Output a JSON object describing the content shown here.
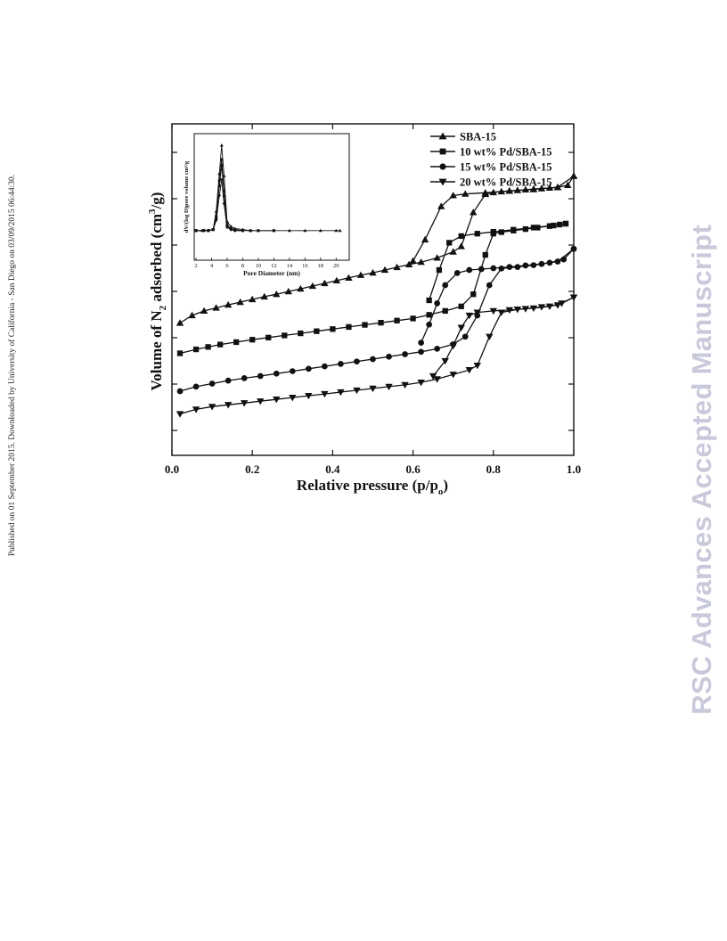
{
  "side_note": "Published on 01 September 2015. Downloaded by University of California - San Diego on 03/09/2015 06:44:30.",
  "watermark": "RSC Advances Accepted Manuscript",
  "colors": {
    "ink": "#111111",
    "watermark": "#c9c9dc"
  },
  "chart_data": [
    {
      "type": "line",
      "title": "",
      "xlabel": "Relative pressure (p/p",
      "xlabel_sub": "o",
      "xlabel_suffix": ")",
      "ylabel_prefix": "Volume of N",
      "ylabel_sub": "2",
      "ylabel_mid": " adsorbed (cm",
      "ylabel_sup": "3",
      "ylabel_suffix": "/g)",
      "xlim": [
        0,
        1
      ],
      "xticks": [
        "0.0",
        "0.2",
        "0.4",
        "0.6",
        "0.8",
        "1.0"
      ],
      "ylim": [
        0,
        100
      ],
      "legend_position": "top-right",
      "series": [
        {
          "name": "SBA-15",
          "marker": "triangle-up",
          "adsorption": [
            [
              0.02,
              37.5
            ],
            [
              0.05,
              40
            ],
            [
              0.08,
              41.5
            ],
            [
              0.11,
              42.5
            ],
            [
              0.14,
              43.5
            ],
            [
              0.17,
              44.4
            ],
            [
              0.2,
              45.3
            ],
            [
              0.23,
              46.2
            ],
            [
              0.26,
              47
            ],
            [
              0.29,
              47.9
            ],
            [
              0.32,
              48.8
            ],
            [
              0.35,
              49.7
            ],
            [
              0.38,
              50.6
            ],
            [
              0.41,
              51.5
            ],
            [
              0.44,
              52.4
            ],
            [
              0.47,
              53.3
            ],
            [
              0.5,
              54.1
            ],
            [
              0.53,
              55
            ],
            [
              0.56,
              55.9
            ],
            [
              0.59,
              56.8
            ],
            [
              0.62,
              57.6
            ],
            [
              0.66,
              59
            ],
            [
              0.7,
              61
            ],
            [
              0.72,
              62.8
            ],
            [
              0.75,
              74
            ],
            [
              0.78,
              80
            ],
            [
              0.8,
              80.6
            ],
            [
              0.82,
              80.9
            ],
            [
              0.84,
              81.1
            ],
            [
              0.86,
              81.3
            ],
            [
              0.88,
              81.5
            ],
            [
              0.9,
              81.7
            ],
            [
              0.92,
              81.9
            ],
            [
              0.94,
              82.1
            ],
            [
              0.96,
              82.3
            ],
            [
              0.985,
              83
            ],
            [
              1.0,
              86
            ]
          ],
          "desorption": [
            [
              1.0,
              86
            ],
            [
              0.96,
              82.3
            ],
            [
              0.9,
              81.6
            ],
            [
              0.84,
              81.1
            ],
            [
              0.78,
              80.5
            ],
            [
              0.73,
              80.1
            ],
            [
              0.7,
              79.6
            ],
            [
              0.67,
              76
            ],
            [
              0.63,
              65
            ],
            [
              0.6,
              58
            ]
          ]
        },
        {
          "name": "10 wt% Pd/SBA-15",
          "marker": "square",
          "adsorption": [
            [
              0.02,
              27.5
            ],
            [
              0.06,
              28.8
            ],
            [
              0.09,
              29.6
            ],
            [
              0.12,
              30.4
            ],
            [
              0.16,
              31.2
            ],
            [
              0.2,
              32
            ],
            [
              0.24,
              32.7
            ],
            [
              0.28,
              33.4
            ],
            [
              0.32,
              34.1
            ],
            [
              0.36,
              34.8
            ],
            [
              0.4,
              35.5
            ],
            [
              0.44,
              36.2
            ],
            [
              0.48,
              36.9
            ],
            [
              0.52,
              37.6
            ],
            [
              0.56,
              38.3
            ],
            [
              0.6,
              39
            ],
            [
              0.64,
              40.2
            ],
            [
              0.68,
              41.5
            ],
            [
              0.72,
              43
            ],
            [
              0.75,
              47
            ],
            [
              0.78,
              60
            ],
            [
              0.8,
              67
            ],
            [
              0.82,
              67.5
            ],
            [
              0.85,
              68
            ],
            [
              0.88,
              68.5
            ],
            [
              0.91,
              69
            ],
            [
              0.94,
              69.5
            ],
            [
              0.965,
              70
            ],
            [
              0.98,
              70.3
            ]
          ],
          "desorption": [
            [
              0.98,
              70.3
            ],
            [
              0.95,
              69.7
            ],
            [
              0.9,
              69
            ],
            [
              0.85,
              68.3
            ],
            [
              0.8,
              67.6
            ],
            [
              0.76,
              67
            ],
            [
              0.72,
              66.2
            ],
            [
              0.69,
              64
            ],
            [
              0.665,
              55
            ],
            [
              0.64,
              45
            ]
          ]
        },
        {
          "name": "15 wt% Pd/SBA-15",
          "marker": "circle",
          "adsorption": [
            [
              0.02,
              15
            ],
            [
              0.06,
              16.5
            ],
            [
              0.1,
              17.5
            ],
            [
              0.14,
              18.5
            ],
            [
              0.18,
              19.3
            ],
            [
              0.22,
              20
            ],
            [
              0.26,
              20.8
            ],
            [
              0.3,
              21.6
            ],
            [
              0.34,
              22.4
            ],
            [
              0.38,
              23.2
            ],
            [
              0.42,
              24
            ],
            [
              0.46,
              24.8
            ],
            [
              0.5,
              25.6
            ],
            [
              0.54,
              26.4
            ],
            [
              0.58,
              27.2
            ],
            [
              0.62,
              28
            ],
            [
              0.66,
              29
            ],
            [
              0.7,
              30.5
            ],
            [
              0.73,
              33
            ],
            [
              0.76,
              40
            ],
            [
              0.79,
              50
            ],
            [
              0.82,
              55.5
            ],
            [
              0.86,
              56
            ],
            [
              0.9,
              56.6
            ],
            [
              0.94,
              57.4
            ],
            [
              0.975,
              58.5
            ],
            [
              1.0,
              62
            ]
          ],
          "desorption": [
            [
              1.0,
              62
            ],
            [
              0.96,
              57.8
            ],
            [
              0.92,
              57
            ],
            [
              0.88,
              56.5
            ],
            [
              0.84,
              56
            ],
            [
              0.8,
              55.6
            ],
            [
              0.77,
              55.3
            ],
            [
              0.74,
              55
            ],
            [
              0.71,
              54
            ],
            [
              0.68,
              50
            ],
            [
              0.66,
              44
            ],
            [
              0.64,
              37
            ],
            [
              0.62,
              31
            ]
          ]
        },
        {
          "name": "20 wt% Pd/SBA-15",
          "marker": "triangle-down",
          "adsorption": [
            [
              0.02,
              7.5
            ],
            [
              0.06,
              9
            ],
            [
              0.1,
              9.9
            ],
            [
              0.14,
              10.5
            ],
            [
              0.18,
              11.1
            ],
            [
              0.22,
              11.7
            ],
            [
              0.26,
              12.3
            ],
            [
              0.3,
              12.9
            ],
            [
              0.34,
              13.5
            ],
            [
              0.38,
              14.1
            ],
            [
              0.42,
              14.7
            ],
            [
              0.46,
              15.3
            ],
            [
              0.5,
              15.9
            ],
            [
              0.54,
              16.5
            ],
            [
              0.58,
              17.1
            ],
            [
              0.62,
              17.9
            ],
            [
              0.66,
              19
            ],
            [
              0.7,
              20.5
            ],
            [
              0.74,
              22
            ],
            [
              0.76,
              23.5
            ],
            [
              0.79,
              33
            ],
            [
              0.82,
              41
            ],
            [
              0.86,
              42
            ],
            [
              0.9,
              42.4
            ],
            [
              0.94,
              43
            ],
            [
              0.97,
              44
            ],
            [
              1.0,
              46
            ]
          ],
          "desorption": [
            [
              1.0,
              46
            ],
            [
              0.96,
              43.4
            ],
            [
              0.92,
              42.8
            ],
            [
              0.88,
              42.2
            ],
            [
              0.84,
              41.8
            ],
            [
              0.8,
              41.5
            ],
            [
              0.76,
              41
            ],
            [
              0.74,
              40
            ],
            [
              0.72,
              36
            ],
            [
              0.7,
              30
            ],
            [
              0.68,
              25
            ],
            [
              0.65,
              20
            ]
          ]
        }
      ]
    },
    {
      "type": "line",
      "title": "",
      "xlabel": "Pore Diameter (nm)",
      "ylabel": "dV/(log D)pore volume cm³/g",
      "xlim": [
        2,
        21
      ],
      "xticks": [
        "2",
        "4",
        "6",
        "8",
        "10",
        "12",
        "14",
        "16",
        "18",
        "20"
      ],
      "ylim": [
        0,
        1
      ],
      "series": [
        {
          "name": "SBA-15",
          "marker": "triangle-up",
          "x": [
            2,
            2.8,
            3.6,
            4.2,
            4.6,
            5,
            5.3,
            5.6,
            6,
            6.5,
            7,
            8,
            9,
            10,
            12,
            14,
            16,
            18,
            20,
            20.5
          ],
          "y": [
            0.16,
            0.16,
            0.16,
            0.17,
            0.35,
            0.72,
            1,
            0.7,
            0.25,
            0.2,
            0.18,
            0.17,
            0.16,
            0.16,
            0.16,
            0.16,
            0.16,
            0.16,
            0.16,
            0.16
          ]
        },
        {
          "name": "10 wt% Pd/SBA-15",
          "marker": "square",
          "x": [
            2,
            3,
            3.6,
            4.2,
            4.6,
            5,
            5.3,
            5.6,
            6,
            6.5,
            7,
            8,
            9,
            10,
            12
          ],
          "y": [
            0.16,
            0.16,
            0.16,
            0.17,
            0.3,
            0.65,
            0.86,
            0.55,
            0.22,
            0.18,
            0.17,
            0.16,
            0.16,
            0.16,
            0.16
          ]
        },
        {
          "name": "15 wt% Pd/SBA-15",
          "marker": "circle",
          "x": [
            2,
            3,
            3.6,
            4.2,
            4.6,
            5,
            5.3,
            5.6,
            6,
            6.5,
            7,
            8
          ],
          "y": [
            0.16,
            0.16,
            0.16,
            0.17,
            0.28,
            0.6,
            0.8,
            0.5,
            0.2,
            0.17,
            0.16,
            0.16
          ]
        },
        {
          "name": "20 wt% Pd/SBA-15",
          "marker": "triangle-down",
          "x": [
            2,
            3,
            3.6,
            4.2,
            4.6,
            5,
            5.3,
            5.6,
            6,
            6.5,
            7,
            8
          ],
          "y": [
            0.16,
            0.16,
            0.16,
            0.17,
            0.26,
            0.5,
            0.66,
            0.42,
            0.19,
            0.17,
            0.16,
            0.16
          ]
        }
      ]
    }
  ]
}
